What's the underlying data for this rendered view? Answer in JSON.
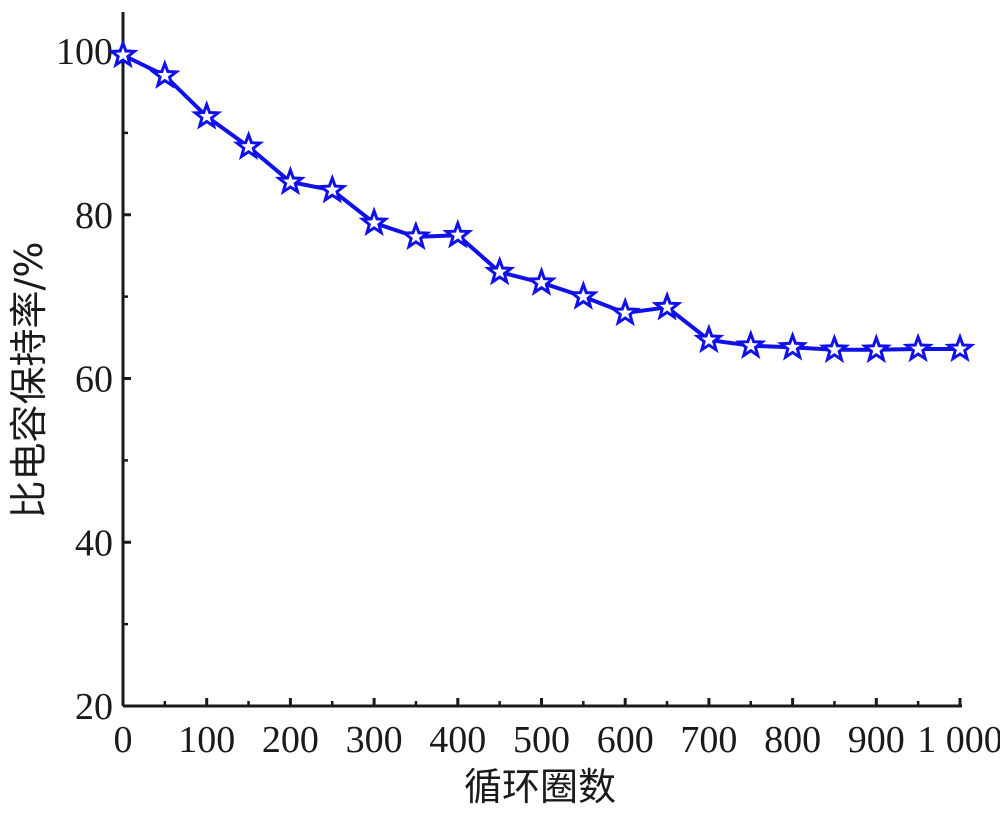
{
  "chart_data": {
    "type": "line",
    "xlabel": "循环圈数",
    "ylabel": "比电容保持率/%",
    "xlim": [
      0,
      1000
    ],
    "ylim": [
      20,
      105
    ],
    "x_ticks": [
      0,
      100,
      200,
      300,
      400,
      500,
      600,
      700,
      800,
      900,
      1000
    ],
    "x_tick_labels": [
      "0",
      "100",
      "200",
      "300",
      "400",
      "500",
      "600",
      "700",
      "800",
      "900",
      "1 000"
    ],
    "y_ticks": [
      20,
      40,
      60,
      80,
      100
    ],
    "y_tick_labels": [
      "20",
      "40",
      "60",
      "80",
      "100"
    ],
    "grid": false,
    "series": [
      {
        "color": "#1010e8",
        "marker": "star",
        "x": [
          0,
          50,
          100,
          150,
          200,
          250,
          300,
          350,
          400,
          450,
          500,
          550,
          600,
          650,
          700,
          750,
          800,
          850,
          900,
          950,
          1000
        ],
        "y": [
          99.5,
          97,
          92,
          88.3,
          84,
          83,
          79,
          77.3,
          77.5,
          73,
          71.7,
          70,
          68,
          68.7,
          64.7,
          64,
          63.8,
          63.5,
          63.5,
          63.6,
          63.6
        ]
      }
    ]
  }
}
